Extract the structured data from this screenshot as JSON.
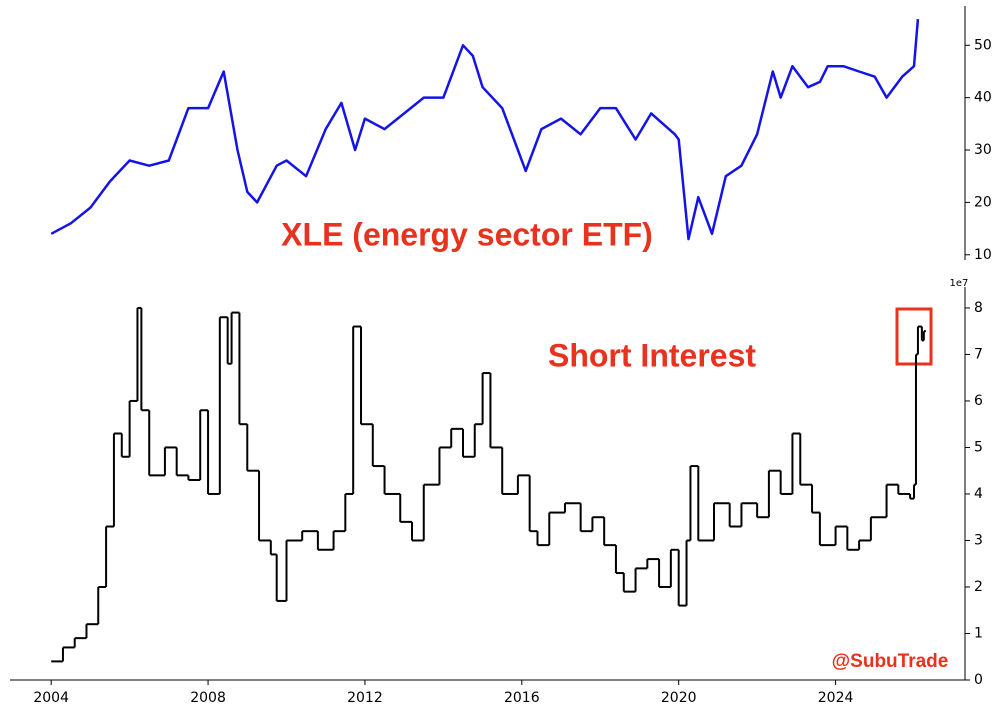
{
  "chart_data": [
    {
      "type": "line",
      "color": "#1414e6",
      "annotations": [
        "XLE (energy sector ETF)"
      ],
      "x": [
        2004.0,
        2004.5,
        2005.0,
        2005.5,
        2006.0,
        2006.5,
        2007.0,
        2007.5,
        2008.0,
        2008.4,
        2008.75,
        2009.0,
        2009.25,
        2009.75,
        2010.0,
        2010.5,
        2011.0,
        2011.4,
        2011.75,
        2012.0,
        2012.5,
        2013.0,
        2013.5,
        2014.0,
        2014.5,
        2014.75,
        2015.0,
        2015.5,
        2015.9,
        2016.1,
        2016.5,
        2017.0,
        2017.5,
        2018.0,
        2018.4,
        2018.9,
        2019.3,
        2019.9,
        2020.0,
        2020.25,
        2020.5,
        2020.85,
        2021.2,
        2021.6,
        2022.0,
        2022.4,
        2022.6,
        2022.9,
        2023.3,
        2023.6,
        2023.8,
        2024.2,
        2024.6,
        2025.0,
        2025.3,
        2025.7,
        2026.0,
        2026.1
      ],
      "values": [
        14,
        16,
        19,
        24,
        28,
        27,
        28,
        38,
        38,
        45,
        30,
        22,
        20,
        27,
        28,
        25,
        34,
        39,
        30,
        36,
        34,
        37,
        40,
        40,
        50,
        48,
        42,
        38,
        30,
        26,
        34,
        36,
        33,
        38,
        38,
        32,
        37,
        33,
        32,
        13,
        21,
        14,
        25,
        27,
        33,
        45,
        40,
        46,
        42,
        43,
        46,
        46,
        45,
        44,
        40,
        44,
        46,
        55
      ],
      "xlim": [
        2002.95,
        2027.3
      ],
      "ylim": [
        9,
        57.5
      ],
      "yticks": [
        10,
        20,
        30,
        40,
        50
      ]
    },
    {
      "type": "line",
      "drawstyle": "steps-post",
      "color": "#000000",
      "annotations": [
        "Short Interest",
        "@SubuTrade"
      ],
      "y_offset_label": "1e7",
      "x": [
        2004.0,
        2004.3,
        2004.6,
        2004.9,
        2005.2,
        2005.4,
        2005.6,
        2005.8,
        2006.0,
        2006.2,
        2006.3,
        2006.5,
        2006.9,
        2007.2,
        2007.5,
        2007.8,
        2008.0,
        2008.3,
        2008.5,
        2008.6,
        2008.8,
        2009.0,
        2009.3,
        2009.6,
        2009.75,
        2010.0,
        2010.4,
        2010.8,
        2011.2,
        2011.5,
        2011.7,
        2011.9,
        2012.2,
        2012.5,
        2012.9,
        2013.2,
        2013.5,
        2013.9,
        2014.2,
        2014.5,
        2014.8,
        2015.0,
        2015.2,
        2015.5,
        2015.9,
        2016.2,
        2016.4,
        2016.7,
        2017.1,
        2017.5,
        2017.8,
        2018.1,
        2018.4,
        2018.6,
        2018.9,
        2019.2,
        2019.5,
        2019.8,
        2020.0,
        2020.2,
        2020.3,
        2020.5,
        2020.9,
        2021.3,
        2021.6,
        2022.0,
        2022.3,
        2022.6,
        2022.9,
        2023.1,
        2023.4,
        2023.6,
        2024.0,
        2024.3,
        2024.6,
        2024.9,
        2025.3,
        2025.6,
        2025.9,
        2026.0,
        2026.05,
        2026.1,
        2026.2,
        2026.25
      ],
      "values": [
        0.4,
        0.7,
        0.9,
        1.2,
        2.0,
        3.3,
        5.3,
        4.8,
        6.0,
        8.0,
        5.8,
        4.4,
        5.0,
        4.4,
        4.3,
        5.8,
        4.0,
        7.8,
        6.8,
        7.9,
        5.5,
        4.5,
        3.0,
        2.7,
        1.7,
        3.0,
        3.2,
        2.8,
        3.2,
        4.0,
        7.6,
        5.5,
        4.6,
        4.0,
        3.4,
        3.0,
        4.2,
        5.0,
        5.4,
        4.8,
        5.5,
        6.6,
        5.0,
        4.0,
        4.4,
        3.2,
        2.9,
        3.6,
        3.8,
        3.2,
        3.5,
        2.9,
        2.3,
        1.9,
        2.4,
        2.6,
        2.0,
        2.8,
        1.6,
        3.0,
        4.6,
        3.0,
        3.8,
        3.3,
        3.8,
        3.5,
        4.5,
        4.0,
        5.3,
        4.2,
        3.6,
        2.9,
        3.3,
        2.8,
        3.0,
        3.5,
        4.2,
        4.0,
        3.9,
        4.2,
        7.0,
        7.6,
        7.3,
        7.5
      ],
      "xlim": [
        2002.95,
        2027.3
      ],
      "xticks": [
        2004,
        2008,
        2012,
        2016,
        2020,
        2024
      ],
      "ylim": [
        0,
        8.45
      ],
      "yticks": [
        0,
        1,
        2,
        3,
        4,
        5,
        6,
        7,
        8
      ]
    }
  ]
}
